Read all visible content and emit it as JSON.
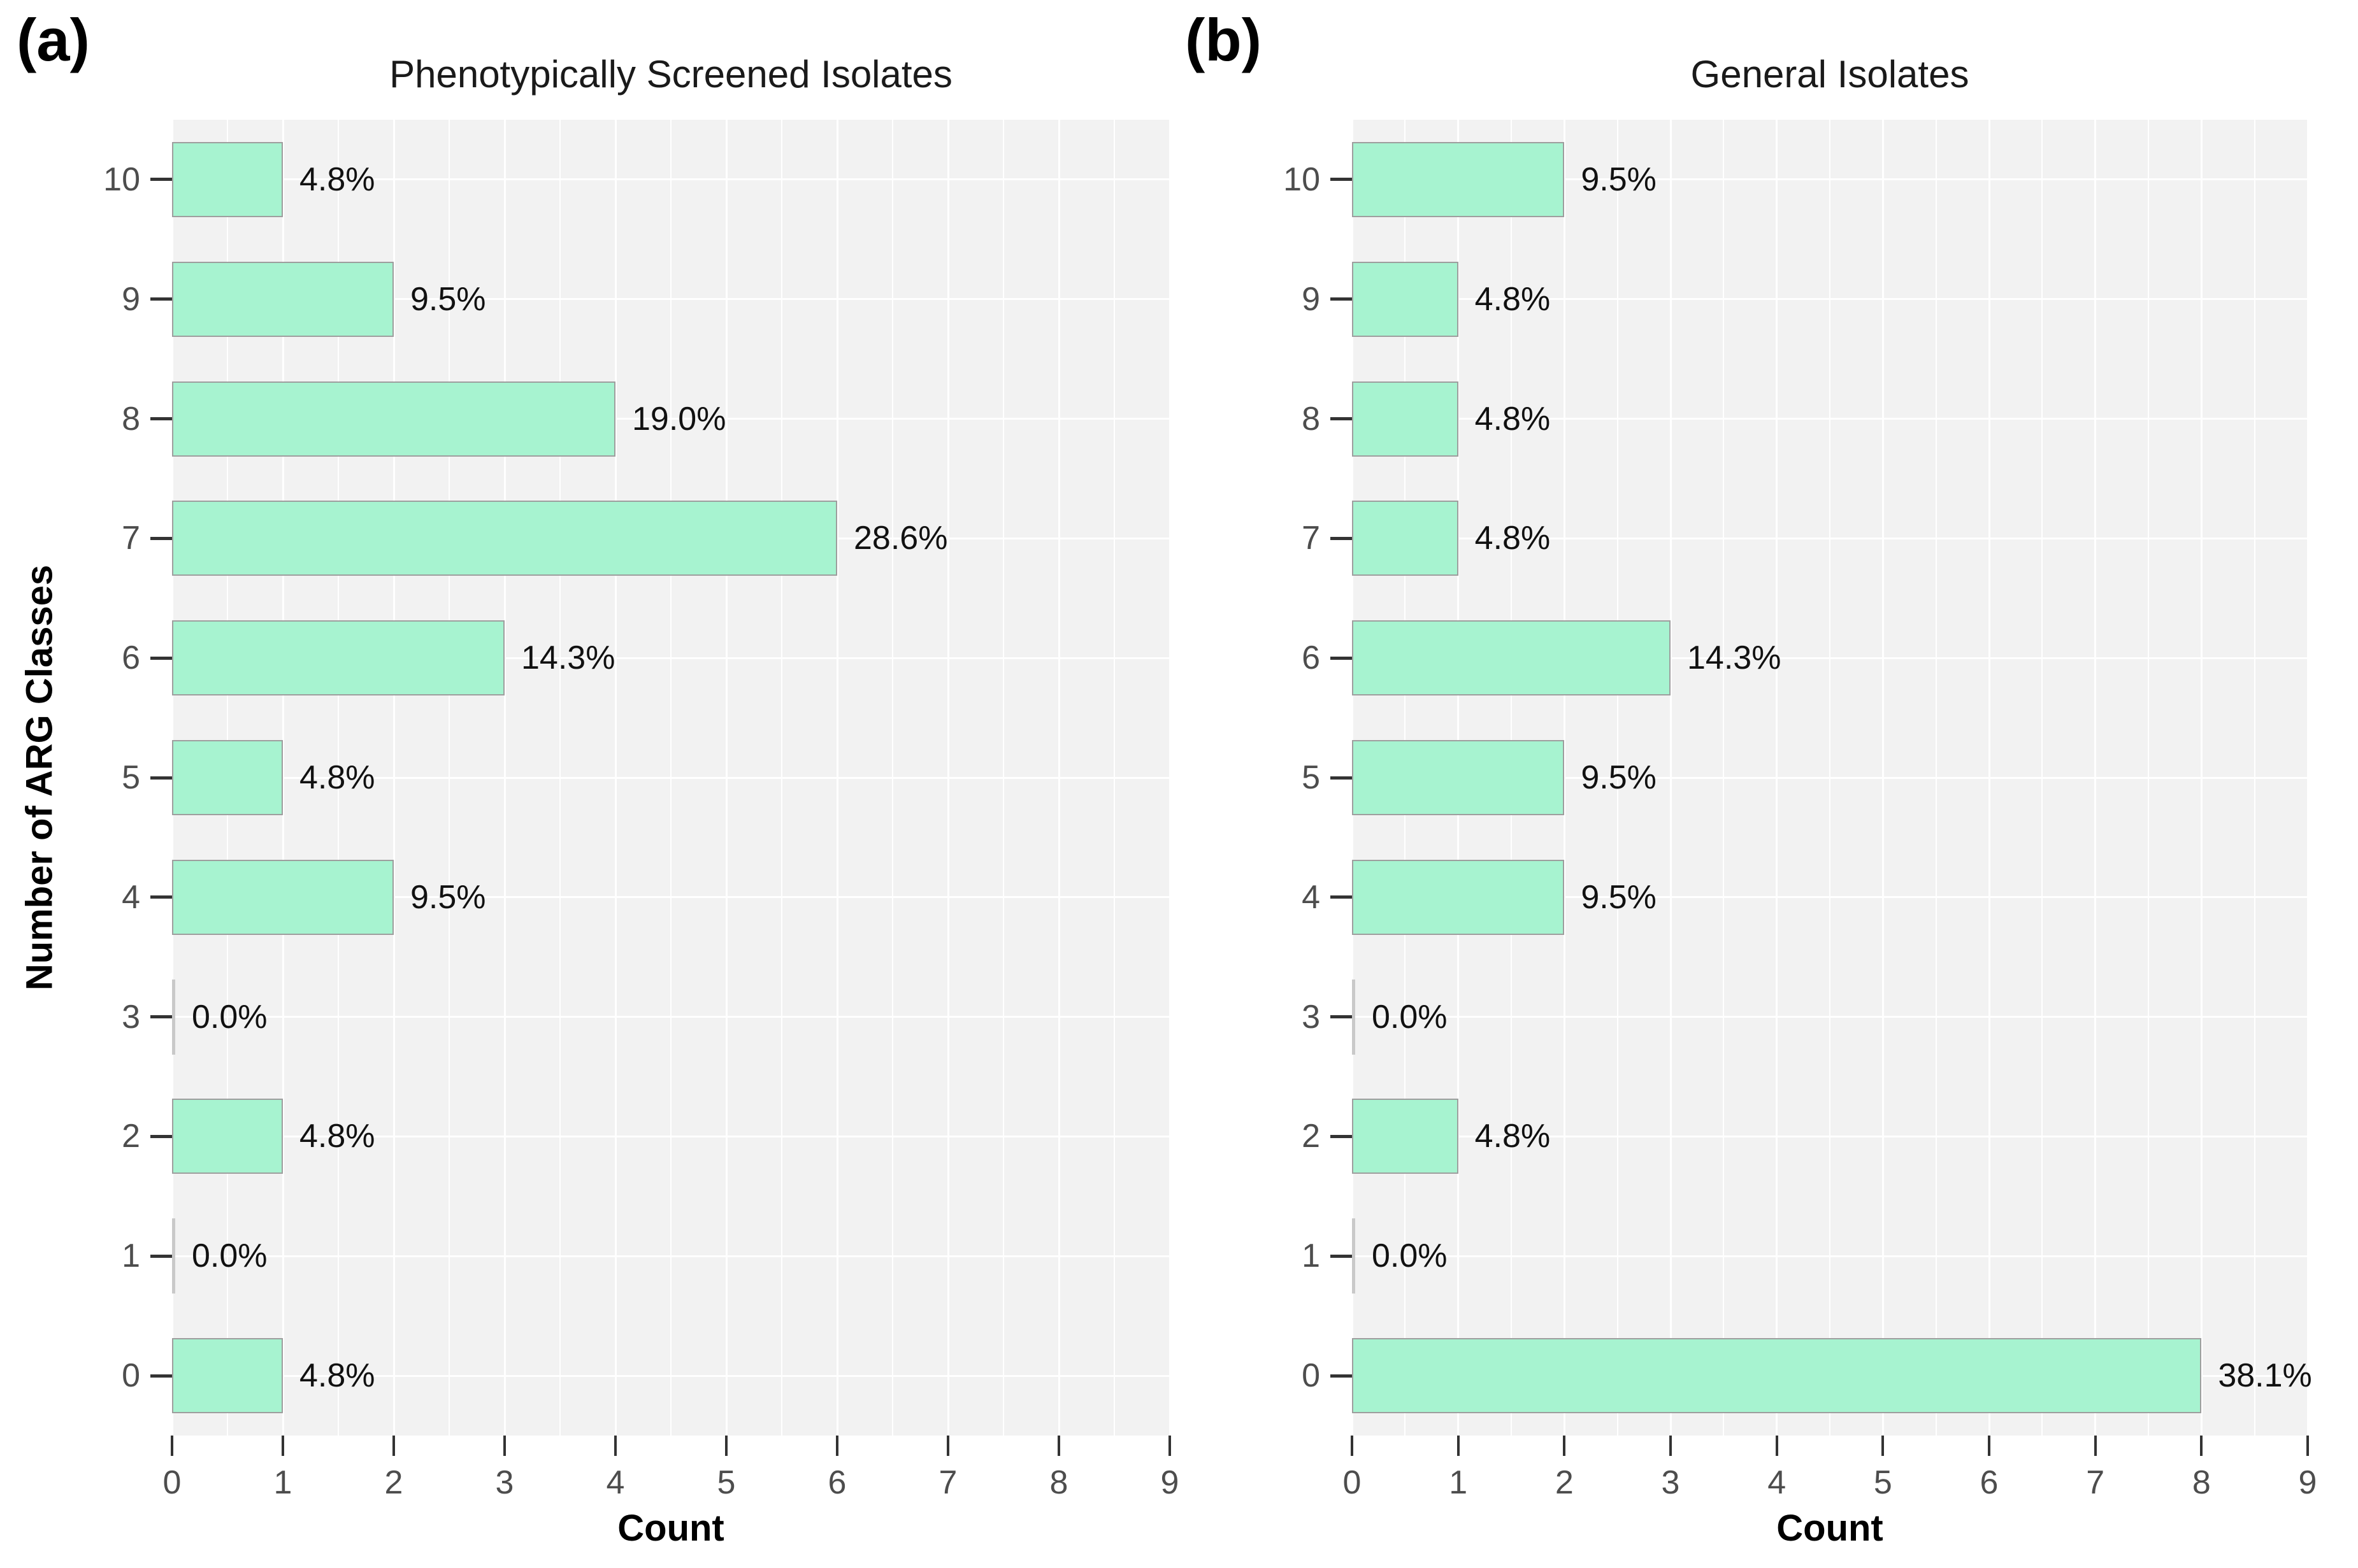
{
  "colors": {
    "bar_fill": "#a7f3d0",
    "bar_border": "#9e9e9e",
    "zero_bar": "#c9c9c9",
    "panel_background": "#f2f2f2",
    "gridline": "#ffffff",
    "tick_label": "#4d4d4d",
    "tick_mark": "#333333",
    "label_text": "#111111",
    "title_text": "#1a1a1a"
  },
  "chart_data": [
    {
      "type": "bar",
      "orientation": "horizontal",
      "panel_label": "(a)",
      "title": "Phenotypically Screened Isolates",
      "xlabel": "Count",
      "ylabel": "Number of ARG Classes",
      "categories": [
        "10",
        "9",
        "8",
        "7",
        "6",
        "5",
        "4",
        "3",
        "2",
        "1",
        "0"
      ],
      "values": [
        1,
        2,
        4,
        6,
        3,
        1,
        2,
        0,
        1,
        0,
        1
      ],
      "bar_labels": [
        "4.8%",
        "9.5%",
        "19.0%",
        "28.6%",
        "14.3%",
        "4.8%",
        "9.5%",
        "0.0%",
        "4.8%",
        "0.0%",
        "4.8%"
      ],
      "xlim": [
        0,
        9
      ],
      "xticks": [
        "0",
        "1",
        "2",
        "3",
        "4",
        "5",
        "6",
        "7",
        "8",
        "9"
      ],
      "grid": {
        "vertical_major": true,
        "vertical_minor": true,
        "horizontal_major": true
      },
      "legend": "none"
    },
    {
      "type": "bar",
      "orientation": "horizontal",
      "panel_label": "(b)",
      "title": "General Isolates",
      "xlabel": "Count",
      "ylabel": "",
      "categories": [
        "10",
        "9",
        "8",
        "7",
        "6",
        "5",
        "4",
        "3",
        "2",
        "1",
        "0"
      ],
      "values": [
        2,
        1,
        1,
        1,
        3,
        2,
        2,
        0,
        1,
        0,
        8
      ],
      "bar_labels": [
        "9.5%",
        "4.8%",
        "4.8%",
        "4.8%",
        "14.3%",
        "9.5%",
        "9.5%",
        "0.0%",
        "4.8%",
        "0.0%",
        "38.1%"
      ],
      "xlim": [
        0,
        9
      ],
      "xticks": [
        "0",
        "1",
        "2",
        "3",
        "4",
        "5",
        "6",
        "7",
        "8",
        "9"
      ],
      "grid": {
        "vertical_major": true,
        "vertical_minor": true,
        "horizontal_major": true
      },
      "legend": "none"
    }
  ]
}
